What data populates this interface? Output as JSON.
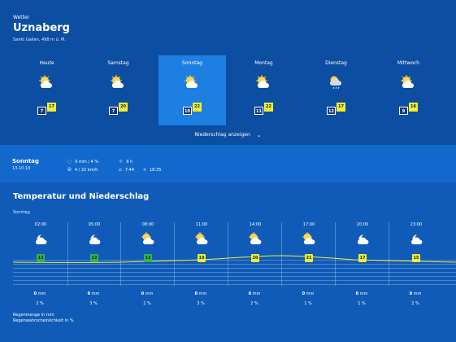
{
  "header": {
    "kicker": "Wetter",
    "location": "Uznaberg",
    "subtitle": "Sankt Gallen, 498 m ü. M."
  },
  "days": [
    {
      "name": "Heute",
      "icon": "partly-sunny-icon",
      "min": "7",
      "max": "17",
      "selected": false
    },
    {
      "name": "Samstag",
      "icon": "partly-sunny-icon",
      "min": "7",
      "max": "20",
      "selected": false
    },
    {
      "name": "Sonntag",
      "icon": "partly-sunny-icon",
      "min": "10",
      "max": "22",
      "selected": true
    },
    {
      "name": "Montag",
      "icon": "partly-sunny-icon",
      "min": "11",
      "max": "22",
      "selected": false
    },
    {
      "name": "Dienstag",
      "icon": "rain-cloud-icon",
      "min": "12",
      "max": "17",
      "selected": false
    },
    {
      "name": "Mittwoch",
      "icon": "partly-sunny-icon",
      "min": "9",
      "max": "16",
      "selected": false
    }
  ],
  "precip_toggle": "Niederschlag anzeigen",
  "day_summary": {
    "name": "Sonntag",
    "date": "13.10.19",
    "rain": "0 mm / 4 %",
    "sun": "8 h",
    "wind": "4 / 22 km/h",
    "sunrise": "7:44",
    "sunset": "18:35"
  },
  "section": {
    "title": "Temperatur und Niederschlag",
    "sub": "Sonntag"
  },
  "hourly": [
    {
      "time": "02:00",
      "icon": "moon-cloud-icon",
      "temp": "13",
      "mm": "0",
      "pct": "2 %"
    },
    {
      "time": "05:00",
      "icon": "moon-cloud-icon",
      "temp": "12",
      "mm": "0",
      "pct": "3 %"
    },
    {
      "time": "08:00",
      "icon": "partly-sunny-icon",
      "temp": "13",
      "mm": "0",
      "pct": "2 %"
    },
    {
      "time": "11:00",
      "icon": "partly-sunny-icon",
      "temp": "19",
      "mm": "0",
      "pct": "3 %"
    },
    {
      "time": "14:00",
      "icon": "partly-sunny-icon",
      "temp": "20",
      "mm": "0",
      "pct": "2 %"
    },
    {
      "time": "17:00",
      "icon": "partly-sunny-icon",
      "temp": "21",
      "mm": "0",
      "pct": "1 %"
    },
    {
      "time": "20:00",
      "icon": "moon-cloud-icon",
      "temp": "17",
      "mm": "0",
      "pct": "1 %"
    },
    {
      "time": "23:00",
      "icon": "moon-cloud-icon",
      "temp": "15",
      "mm": "0",
      "pct": "2 %"
    }
  ],
  "units": {
    "mm": "mm"
  },
  "legend": [
    "Regenmenge in mm",
    "Regenwahrscheinlichkeit in %"
  ],
  "colors": {
    "bg_top": "#0b4ea2",
    "bg_bottom": "#0f5bb7",
    "accent_selected": "#1e7fe3",
    "temp_badge": "#f0ef34"
  }
}
